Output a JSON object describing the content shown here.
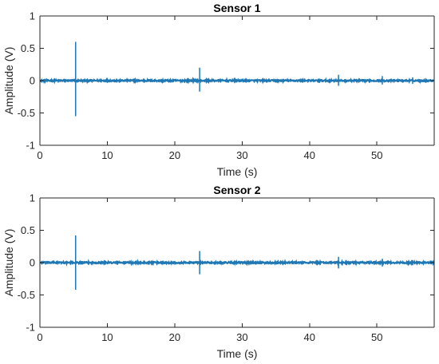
{
  "chart_data": [
    {
      "type": "line",
      "title": "Sensor 1",
      "xlabel": "Time (s)",
      "ylabel": "Amplitude (V)",
      "xlim": [
        0,
        58.5
      ],
      "ylim": [
        -1,
        1
      ],
      "xticks": [
        0,
        10,
        20,
        30,
        40,
        50
      ],
      "yticks": [
        -1,
        -0.5,
        0,
        0.5,
        1
      ],
      "xtick_labels": [
        "0",
        "10",
        "20",
        "30",
        "40",
        "50"
      ],
      "ytick_labels": [
        "-1",
        "-0.5",
        "0",
        "0.5",
        "1"
      ],
      "grid": false,
      "legend": "none",
      "series_color": "#1f77b4",
      "baseline_noise": 0.012,
      "spikes": [
        {
          "x": 5.3,
          "max": 0.6,
          "min": -0.55
        },
        {
          "x": 9.1,
          "max": 0.03,
          "min": -0.03
        },
        {
          "x": 11.4,
          "max": 0.03,
          "min": -0.03
        },
        {
          "x": 23.7,
          "max": 0.2,
          "min": -0.17
        },
        {
          "x": 26.8,
          "max": 0.03,
          "min": -0.03
        },
        {
          "x": 38.9,
          "max": 0.03,
          "min": -0.03
        },
        {
          "x": 41.3,
          "max": 0.03,
          "min": -0.03
        },
        {
          "x": 44.3,
          "max": 0.09,
          "min": -0.08
        },
        {
          "x": 46.6,
          "max": 0.03,
          "min": -0.03
        },
        {
          "x": 48.9,
          "max": 0.03,
          "min": -0.03
        },
        {
          "x": 50.8,
          "max": 0.07,
          "min": -0.06
        },
        {
          "x": 55.3,
          "max": 0.05,
          "min": -0.05
        }
      ]
    },
    {
      "type": "line",
      "title": "Sensor 2",
      "xlabel": "Time (s)",
      "ylabel": "Amplitude (V)",
      "xlim": [
        0,
        58.5
      ],
      "ylim": [
        -1,
        1
      ],
      "xticks": [
        0,
        10,
        20,
        30,
        40,
        50
      ],
      "yticks": [
        -1,
        -0.5,
        0,
        0.5,
        1
      ],
      "xtick_labels": [
        "0",
        "10",
        "20",
        "30",
        "40",
        "50"
      ],
      "ytick_labels": [
        "-1",
        "-0.5",
        "0",
        "0.5",
        "1"
      ],
      "grid": false,
      "legend": "none",
      "series_color": "#1f77b4",
      "baseline_noise": 0.012,
      "spikes": [
        {
          "x": 5.3,
          "max": 0.42,
          "min": -0.42
        },
        {
          "x": 9.1,
          "max": 0.03,
          "min": -0.03
        },
        {
          "x": 11.4,
          "max": 0.03,
          "min": -0.03
        },
        {
          "x": 23.7,
          "max": 0.18,
          "min": -0.18
        },
        {
          "x": 26.8,
          "max": 0.03,
          "min": -0.03
        },
        {
          "x": 38.9,
          "max": 0.03,
          "min": -0.03
        },
        {
          "x": 41.3,
          "max": 0.03,
          "min": -0.03
        },
        {
          "x": 44.3,
          "max": 0.09,
          "min": -0.09
        },
        {
          "x": 46.6,
          "max": 0.03,
          "min": -0.03
        },
        {
          "x": 48.9,
          "max": 0.03,
          "min": -0.03
        },
        {
          "x": 50.8,
          "max": 0.06,
          "min": -0.06
        },
        {
          "x": 55.3,
          "max": 0.04,
          "min": -0.04
        }
      ]
    }
  ]
}
